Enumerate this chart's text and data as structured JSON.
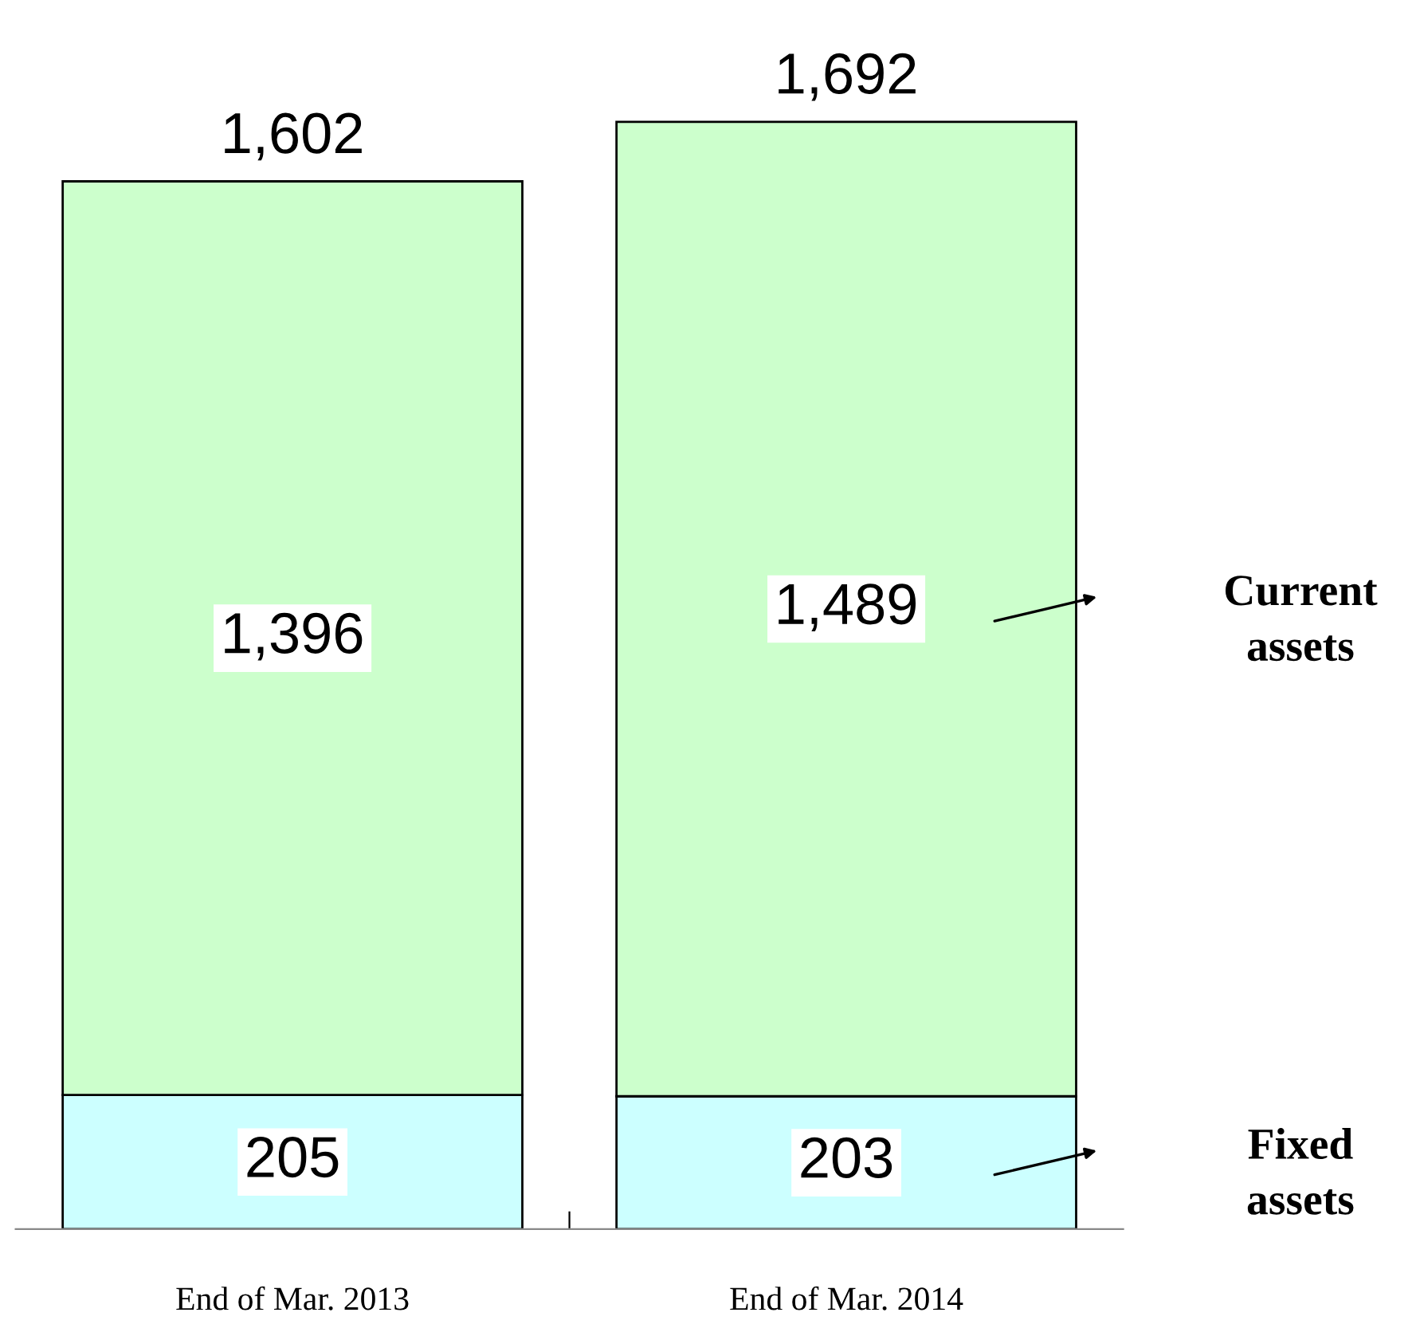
{
  "chart_data": {
    "type": "bar",
    "stacked": true,
    "categories": [
      "End of Mar. 2013",
      "End of Mar. 2014"
    ],
    "series": [
      {
        "name": "Fixed assets",
        "color": "#ccffff",
        "values": [
          205,
          203
        ],
        "value_labels": [
          "205",
          "203"
        ]
      },
      {
        "name": "Current assets",
        "color": "#ccffcc",
        "values": [
          1396,
          1489
        ],
        "value_labels": [
          "1,396",
          "1,489"
        ]
      }
    ],
    "totals": [
      "1,602",
      "1,692"
    ],
    "legend": "right",
    "grid": false
  }
}
